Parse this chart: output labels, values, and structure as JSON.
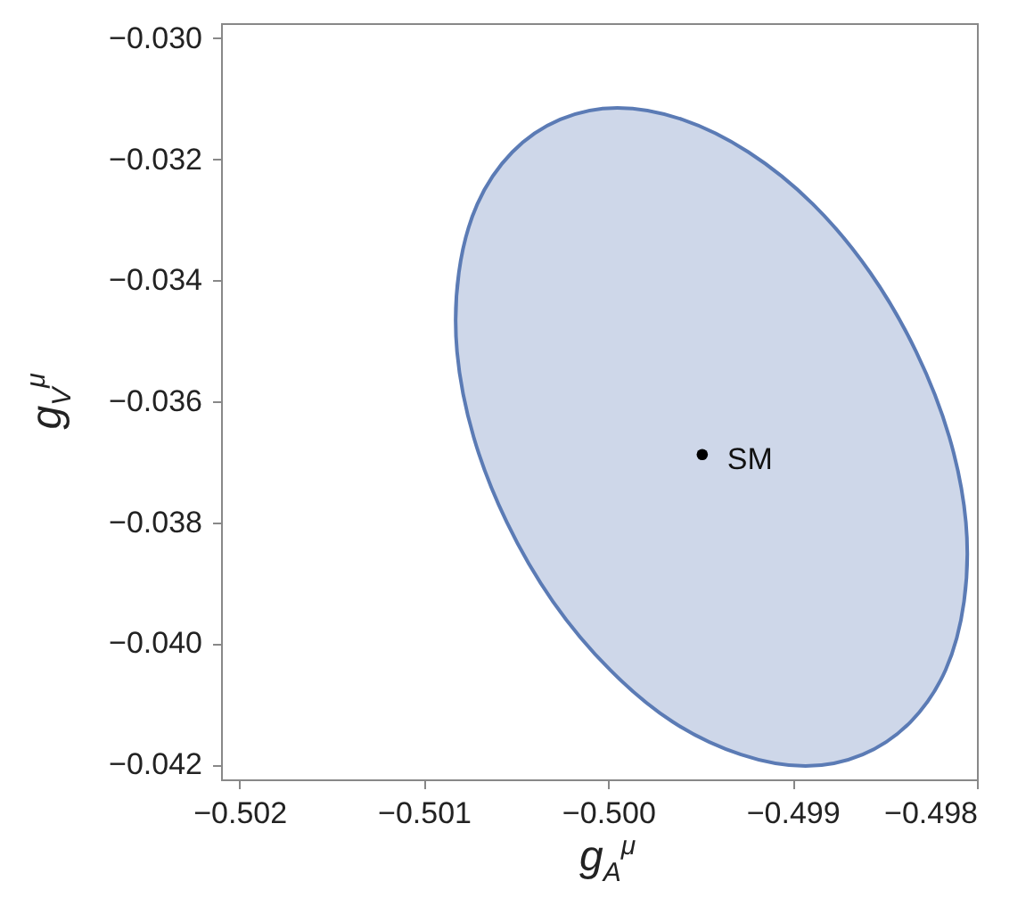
{
  "chart_data": {
    "type": "area",
    "xlabel": "g$_{A}$$^{μ}$",
    "ylabel": "g$_{V}$$^{μ}$",
    "xlim": [
      -0.5021,
      -0.498
    ],
    "ylim": [
      -0.04225,
      -0.02975
    ],
    "xticks": [
      {
        "value": -0.502,
        "label": "−0.502"
      },
      {
        "value": -0.501,
        "label": "−0.501"
      },
      {
        "value": -0.5,
        "label": "−0.500"
      },
      {
        "value": -0.499,
        "label": "−0.499"
      },
      {
        "value": -0.498,
        "label": "−0.498"
      }
    ],
    "yticks": [
      {
        "value": -0.042,
        "label": "−0.042"
      },
      {
        "value": -0.04,
        "label": "−0.040"
      },
      {
        "value": -0.038,
        "label": "−0.038"
      },
      {
        "value": -0.036,
        "label": "−0.036"
      },
      {
        "value": -0.034,
        "label": "−0.034"
      },
      {
        "value": -0.032,
        "label": "−0.032"
      },
      {
        "value": -0.03,
        "label": "−0.030"
      }
    ],
    "grid": false,
    "series": [
      {
        "color": "#5b7bb5",
        "x": [
          -0.49893,
          -0.49862,
          -0.49836,
          -0.49817,
          -0.49807,
          -0.49806,
          -0.49815,
          -0.49833,
          -0.49858,
          -0.49889,
          -0.49924,
          -0.4996,
          -0.49995,
          -0.50026,
          -0.50052,
          -0.50071,
          -0.50081,
          -0.50082,
          -0.50073,
          -0.50055,
          -0.5003,
          -0.49999,
          -0.49965,
          -0.49928
        ],
        "values": [
          -0.04203,
          -0.04184,
          -0.0413,
          -0.04044,
          -0.03931,
          -0.038,
          -0.03659,
          -0.03518,
          -0.03387,
          -0.03274,
          -0.03188,
          -0.03134,
          -0.03115,
          -0.03134,
          -0.03188,
          -0.03274,
          -0.03387,
          -0.03518,
          -0.03659,
          -0.038,
          -0.03931,
          -0.04044,
          -0.0413,
          -0.04184
        ]
      },
      {
        "type": "scatter",
        "color": "#000000",
        "x": [
          -0.49949
        ],
        "values": [
          -0.03688
        ]
      }
    ],
    "annotations": [
      {
        "text": "SM",
        "x": -0.49949,
        "y": -0.03688
      }
    ]
  }
}
